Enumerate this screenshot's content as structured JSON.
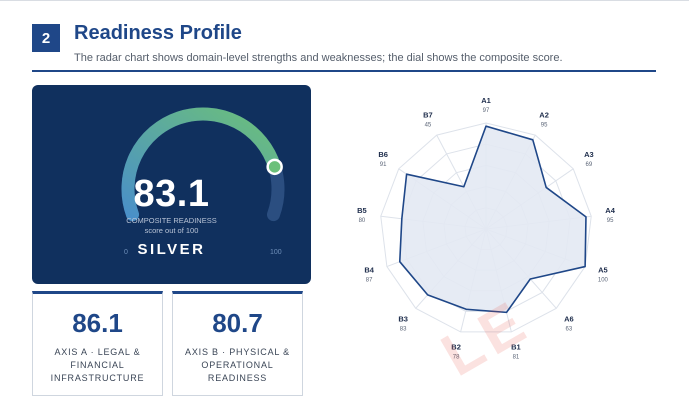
{
  "header": {
    "section_number": "2",
    "title": "Readiness Profile",
    "subtitle": "The radar chart shows domain-level strengths and weaknesses; the dial shows the composite score."
  },
  "dial": {
    "score": "83.1",
    "score_value": 83.1,
    "label": "COMPOSITE READINESS",
    "sublabel": "score out of 100",
    "tier": "SILVER",
    "min": "0",
    "max": "100",
    "range": [
      0,
      100
    ]
  },
  "axes": [
    {
      "value": "86.1",
      "label": "AXIS A · LEGAL & FINANCIAL INFRASTRUCTURE"
    },
    {
      "value": "80.7",
      "label": "AXIS B · PHYSICAL & OPERATIONAL READINESS"
    }
  ],
  "watermark": "LE",
  "colors": {
    "primary": "#1f4788",
    "card_bg": "#10305e",
    "gauge_start": "#4a90c8",
    "gauge_end": "#6cc07a",
    "radar_fill": "#e3e9f3",
    "radar_stroke": "#1f4788"
  },
  "chart_data": {
    "type": "radar",
    "range": [
      0,
      100
    ],
    "categories": [
      "A1",
      "A2",
      "A3",
      "A4",
      "A5",
      "A6",
      "B1",
      "B2",
      "B3",
      "B4",
      "B5",
      "B6",
      "B7"
    ],
    "values": [
      97,
      95,
      69,
      95,
      100,
      63,
      81,
      78,
      83,
      87,
      80,
      91,
      45
    ]
  }
}
